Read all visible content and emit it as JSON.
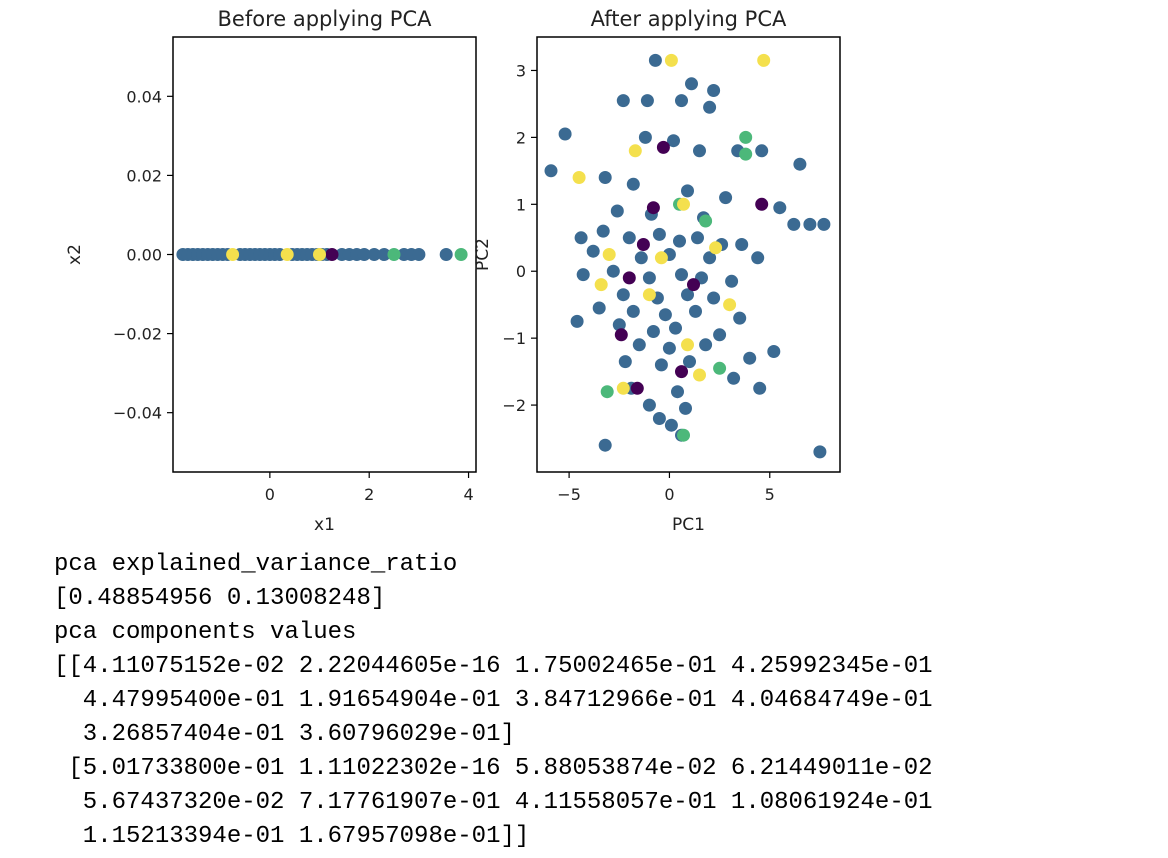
{
  "chart_data": [
    {
      "type": "scatter",
      "title": "Before applying PCA",
      "xlabel": "x1",
      "ylabel": "x2",
      "xlim": [
        -1.95,
        4.15
      ],
      "ylim": [
        -0.055,
        0.055
      ],
      "xticks": [
        0,
        2,
        4
      ],
      "xtick_labels": [
        "0",
        "2",
        "4"
      ],
      "yticks": [
        0.04,
        0.02,
        0.0,
        -0.02,
        -0.04
      ],
      "ytick_labels": [
        "0.04",
        "0.02",
        "0.00",
        "−0.02",
        "−0.04"
      ],
      "colors": {
        "purple": "#440154",
        "blue": "#3b6a92",
        "green": "#4cb87a",
        "yellow": "#f4e04d"
      },
      "points": [
        {
          "x": -1.75,
          "y": 0,
          "c": "blue"
        },
        {
          "x": -1.65,
          "y": 0,
          "c": "blue"
        },
        {
          "x": -1.55,
          "y": 0,
          "c": "blue"
        },
        {
          "x": -1.45,
          "y": 0,
          "c": "blue"
        },
        {
          "x": -1.35,
          "y": 0,
          "c": "blue"
        },
        {
          "x": -1.25,
          "y": 0,
          "c": "blue"
        },
        {
          "x": -1.15,
          "y": 0,
          "c": "blue"
        },
        {
          "x": -1.05,
          "y": 0,
          "c": "blue"
        },
        {
          "x": -0.95,
          "y": 0,
          "c": "blue"
        },
        {
          "x": -0.85,
          "y": 0,
          "c": "blue"
        },
        {
          "x": -0.6,
          "y": 0,
          "c": "blue"
        },
        {
          "x": -0.5,
          "y": 0,
          "c": "blue"
        },
        {
          "x": -0.4,
          "y": 0,
          "c": "blue"
        },
        {
          "x": -0.3,
          "y": 0,
          "c": "blue"
        },
        {
          "x": -0.2,
          "y": 0,
          "c": "blue"
        },
        {
          "x": -0.1,
          "y": 0,
          "c": "blue"
        },
        {
          "x": 0.0,
          "y": 0,
          "c": "blue"
        },
        {
          "x": 0.1,
          "y": 0,
          "c": "blue"
        },
        {
          "x": 0.2,
          "y": 0,
          "c": "blue"
        },
        {
          "x": 0.45,
          "y": 0,
          "c": "blue"
        },
        {
          "x": 0.55,
          "y": 0,
          "c": "blue"
        },
        {
          "x": 0.65,
          "y": 0,
          "c": "blue"
        },
        {
          "x": 0.75,
          "y": 0,
          "c": "blue"
        },
        {
          "x": 0.85,
          "y": 0,
          "c": "blue"
        },
        {
          "x": 0.95,
          "y": 0,
          "c": "blue"
        },
        {
          "x": 1.05,
          "y": 0,
          "c": "blue"
        },
        {
          "x": 1.15,
          "y": 0,
          "c": "blue"
        },
        {
          "x": 1.45,
          "y": 0,
          "c": "blue"
        },
        {
          "x": 1.6,
          "y": 0,
          "c": "blue"
        },
        {
          "x": 1.75,
          "y": 0,
          "c": "blue"
        },
        {
          "x": 1.9,
          "y": 0,
          "c": "blue"
        },
        {
          "x": 2.1,
          "y": 0,
          "c": "blue"
        },
        {
          "x": 2.3,
          "y": 0,
          "c": "blue"
        },
        {
          "x": 2.7,
          "y": 0,
          "c": "blue"
        },
        {
          "x": 2.85,
          "y": 0,
          "c": "blue"
        },
        {
          "x": 3.0,
          "y": 0,
          "c": "blue"
        },
        {
          "x": 3.55,
          "y": 0,
          "c": "blue"
        },
        {
          "x": 1.25,
          "y": 0,
          "c": "purple"
        },
        {
          "x": 2.5,
          "y": 0,
          "c": "green"
        },
        {
          "x": 3.85,
          "y": 0,
          "c": "green"
        },
        {
          "x": -0.75,
          "y": 0,
          "c": "yellow"
        },
        {
          "x": 0.35,
          "y": 0,
          "c": "yellow"
        },
        {
          "x": 1.0,
          "y": 0,
          "c": "yellow"
        }
      ]
    },
    {
      "type": "scatter",
      "title": "After applying PCA",
      "xlabel": "PC1",
      "ylabel": "PC2",
      "xlim": [
        -6.6,
        8.5
      ],
      "ylim": [
        -3.0,
        3.5
      ],
      "xticks": [
        -5,
        0,
        5
      ],
      "xtick_labels": [
        "−5",
        "0",
        "5"
      ],
      "yticks": [
        3,
        2,
        1,
        0,
        -1,
        -2
      ],
      "ytick_labels": [
        "3",
        "2",
        "1",
        "0",
        "−1",
        "−2"
      ],
      "colors": {
        "purple": "#440154",
        "blue": "#3b6a92",
        "green": "#4cb87a",
        "yellow": "#f4e04d"
      },
      "points": [
        {
          "x": -0.7,
          "y": 3.15,
          "c": "blue"
        },
        {
          "x": 1.1,
          "y": 2.8,
          "c": "blue"
        },
        {
          "x": 2.2,
          "y": 2.7,
          "c": "blue"
        },
        {
          "x": -2.3,
          "y": 2.55,
          "c": "blue"
        },
        {
          "x": -1.1,
          "y": 2.55,
          "c": "blue"
        },
        {
          "x": 0.6,
          "y": 2.55,
          "c": "blue"
        },
        {
          "x": 2.0,
          "y": 2.45,
          "c": "blue"
        },
        {
          "x": -5.2,
          "y": 2.05,
          "c": "blue"
        },
        {
          "x": -1.2,
          "y": 2.0,
          "c": "blue"
        },
        {
          "x": 0.2,
          "y": 1.95,
          "c": "blue"
        },
        {
          "x": 1.5,
          "y": 1.8,
          "c": "blue"
        },
        {
          "x": 3.4,
          "y": 1.8,
          "c": "blue"
        },
        {
          "x": 4.6,
          "y": 1.8,
          "c": "blue"
        },
        {
          "x": 6.5,
          "y": 1.6,
          "c": "blue"
        },
        {
          "x": -5.9,
          "y": 1.5,
          "c": "blue"
        },
        {
          "x": -3.2,
          "y": 1.4,
          "c": "blue"
        },
        {
          "x": -1.8,
          "y": 1.3,
          "c": "blue"
        },
        {
          "x": 0.9,
          "y": 1.2,
          "c": "blue"
        },
        {
          "x": 2.8,
          "y": 1.1,
          "c": "blue"
        },
        {
          "x": 5.5,
          "y": 0.95,
          "c": "blue"
        },
        {
          "x": -2.6,
          "y": 0.9,
          "c": "blue"
        },
        {
          "x": -0.9,
          "y": 0.85,
          "c": "blue"
        },
        {
          "x": 1.7,
          "y": 0.8,
          "c": "blue"
        },
        {
          "x": 6.2,
          "y": 0.7,
          "c": "blue"
        },
        {
          "x": 7.0,
          "y": 0.7,
          "c": "blue"
        },
        {
          "x": 7.7,
          "y": 0.7,
          "c": "blue"
        },
        {
          "x": -4.4,
          "y": 0.5,
          "c": "blue"
        },
        {
          "x": -3.3,
          "y": 0.6,
          "c": "blue"
        },
        {
          "x": -2.0,
          "y": 0.5,
          "c": "blue"
        },
        {
          "x": -0.5,
          "y": 0.55,
          "c": "blue"
        },
        {
          "x": 0.5,
          "y": 0.45,
          "c": "blue"
        },
        {
          "x": 1.4,
          "y": 0.5,
          "c": "blue"
        },
        {
          "x": 2.6,
          "y": 0.4,
          "c": "blue"
        },
        {
          "x": 3.6,
          "y": 0.4,
          "c": "blue"
        },
        {
          "x": -3.8,
          "y": 0.3,
          "c": "blue"
        },
        {
          "x": -1.4,
          "y": 0.2,
          "c": "blue"
        },
        {
          "x": 0.0,
          "y": 0.25,
          "c": "blue"
        },
        {
          "x": 2.0,
          "y": 0.2,
          "c": "blue"
        },
        {
          "x": 4.4,
          "y": 0.2,
          "c": "blue"
        },
        {
          "x": -4.3,
          "y": -0.05,
          "c": "blue"
        },
        {
          "x": -2.8,
          "y": 0.0,
          "c": "blue"
        },
        {
          "x": -1.0,
          "y": -0.1,
          "c": "blue"
        },
        {
          "x": 0.6,
          "y": -0.05,
          "c": "blue"
        },
        {
          "x": 1.6,
          "y": -0.1,
          "c": "blue"
        },
        {
          "x": 3.1,
          "y": -0.15,
          "c": "blue"
        },
        {
          "x": -2.3,
          "y": -0.35,
          "c": "blue"
        },
        {
          "x": -0.6,
          "y": -0.4,
          "c": "blue"
        },
        {
          "x": 0.9,
          "y": -0.35,
          "c": "blue"
        },
        {
          "x": 2.2,
          "y": -0.4,
          "c": "blue"
        },
        {
          "x": -3.5,
          "y": -0.55,
          "c": "blue"
        },
        {
          "x": -1.8,
          "y": -0.6,
          "c": "blue"
        },
        {
          "x": -0.2,
          "y": -0.65,
          "c": "blue"
        },
        {
          "x": 1.3,
          "y": -0.6,
          "c": "blue"
        },
        {
          "x": 3.5,
          "y": -0.7,
          "c": "blue"
        },
        {
          "x": -4.6,
          "y": -0.75,
          "c": "blue"
        },
        {
          "x": -2.5,
          "y": -0.8,
          "c": "blue"
        },
        {
          "x": -0.8,
          "y": -0.9,
          "c": "blue"
        },
        {
          "x": 0.3,
          "y": -0.85,
          "c": "blue"
        },
        {
          "x": 2.5,
          "y": -0.95,
          "c": "blue"
        },
        {
          "x": -1.5,
          "y": -1.1,
          "c": "blue"
        },
        {
          "x": 0.0,
          "y": -1.15,
          "c": "blue"
        },
        {
          "x": 1.8,
          "y": -1.1,
          "c": "blue"
        },
        {
          "x": 4.0,
          "y": -1.3,
          "c": "blue"
        },
        {
          "x": 5.2,
          "y": -1.2,
          "c": "blue"
        },
        {
          "x": -2.2,
          "y": -1.35,
          "c": "blue"
        },
        {
          "x": -0.4,
          "y": -1.4,
          "c": "blue"
        },
        {
          "x": 1.0,
          "y": -1.35,
          "c": "blue"
        },
        {
          "x": 3.2,
          "y": -1.6,
          "c": "blue"
        },
        {
          "x": 4.5,
          "y": -1.75,
          "c": "blue"
        },
        {
          "x": -1.9,
          "y": -1.75,
          "c": "blue"
        },
        {
          "x": 0.4,
          "y": -1.8,
          "c": "blue"
        },
        {
          "x": -1.0,
          "y": -2.0,
          "c": "blue"
        },
        {
          "x": 0.8,
          "y": -2.05,
          "c": "blue"
        },
        {
          "x": -0.5,
          "y": -2.2,
          "c": "blue"
        },
        {
          "x": 0.1,
          "y": -2.3,
          "c": "blue"
        },
        {
          "x": 0.6,
          "y": -2.45,
          "c": "blue"
        },
        {
          "x": -3.2,
          "y": -2.6,
          "c": "blue"
        },
        {
          "x": 7.5,
          "y": -2.7,
          "c": "blue"
        },
        {
          "x": -0.3,
          "y": 1.85,
          "c": "purple"
        },
        {
          "x": -0.8,
          "y": 0.95,
          "c": "purple"
        },
        {
          "x": -1.3,
          "y": 0.4,
          "c": "purple"
        },
        {
          "x": 4.6,
          "y": 1.0,
          "c": "purple"
        },
        {
          "x": -2.0,
          "y": -0.1,
          "c": "purple"
        },
        {
          "x": 1.2,
          "y": -0.2,
          "c": "purple"
        },
        {
          "x": -2.4,
          "y": -0.95,
          "c": "purple"
        },
        {
          "x": -1.6,
          "y": -1.75,
          "c": "purple"
        },
        {
          "x": 0.6,
          "y": -1.5,
          "c": "purple"
        },
        {
          "x": 3.8,
          "y": 2.0,
          "c": "green"
        },
        {
          "x": 3.8,
          "y": 1.75,
          "c": "green"
        },
        {
          "x": 0.5,
          "y": 1.0,
          "c": "green"
        },
        {
          "x": 1.8,
          "y": 0.75,
          "c": "green"
        },
        {
          "x": 2.5,
          "y": -1.45,
          "c": "green"
        },
        {
          "x": -3.1,
          "y": -1.8,
          "c": "green"
        },
        {
          "x": 0.7,
          "y": -2.45,
          "c": "green"
        },
        {
          "x": 0.1,
          "y": 3.15,
          "c": "yellow"
        },
        {
          "x": 4.7,
          "y": 3.15,
          "c": "yellow"
        },
        {
          "x": -1.7,
          "y": 1.8,
          "c": "yellow"
        },
        {
          "x": -4.5,
          "y": 1.4,
          "c": "yellow"
        },
        {
          "x": 0.7,
          "y": 1.0,
          "c": "yellow"
        },
        {
          "x": -3.0,
          "y": 0.25,
          "c": "yellow"
        },
        {
          "x": 2.3,
          "y": 0.35,
          "c": "yellow"
        },
        {
          "x": -0.4,
          "y": 0.2,
          "c": "yellow"
        },
        {
          "x": -3.4,
          "y": -0.2,
          "c": "yellow"
        },
        {
          "x": -1.0,
          "y": -0.35,
          "c": "yellow"
        },
        {
          "x": 3.0,
          "y": -0.5,
          "c": "yellow"
        },
        {
          "x": 0.9,
          "y": -1.1,
          "c": "yellow"
        },
        {
          "x": -2.3,
          "y": -1.75,
          "c": "yellow"
        },
        {
          "x": 1.5,
          "y": -1.55,
          "c": "yellow"
        }
      ]
    }
  ],
  "output": {
    "lines": [
      "pca explained_variance_ratio",
      "[0.48854956 0.13008248]",
      "pca components values",
      "[[4.11075152e-02 2.22044605e-16 1.75002465e-01 4.25992345e-01",
      "  4.47995400e-01 1.91654904e-01 3.84712966e-01 4.04684749e-01",
      "  3.26857404e-01 3.60796029e-01]",
      " [5.01733800e-01 1.11022302e-16 5.88053874e-02 6.21449011e-02",
      "  5.67437320e-02 7.17761907e-01 4.11558057e-01 1.08061924e-01",
      "  1.15213394e-01 1.67957098e-01]]"
    ]
  }
}
